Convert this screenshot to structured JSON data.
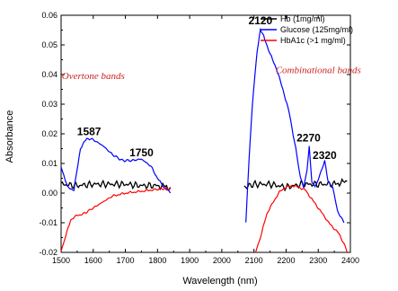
{
  "chart_data": {
    "type": "line",
    "xlabel": "Wavelength (nm)",
    "ylabel": "Absorbance",
    "xlim": [
      1500,
      2400
    ],
    "ylim": [
      -0.02,
      0.06
    ],
    "x_ticks": [
      1500,
      1600,
      1700,
      1800,
      1900,
      2000,
      2100,
      2200,
      2300,
      2400
    ],
    "y_ticks": [
      -0.02,
      -0.01,
      0.0,
      0.01,
      0.02,
      0.03,
      0.04,
      0.05,
      0.06
    ],
    "y_tick_labels": [
      "-0.02",
      "-0.01",
      "0.00",
      "0.01",
      "0.02",
      "0.03",
      "0.04",
      "0.05",
      "0.06"
    ],
    "legend_position": "top-right",
    "grid": false,
    "series": [
      {
        "name": "Hb (1mg/ml)",
        "color": "#000000",
        "segments": [
          [
            [
              1500,
              0.003
            ],
            [
              1550,
              0.0025
            ],
            [
              1600,
              0.003
            ],
            [
              1650,
              0.003
            ],
            [
              1700,
              0.003
            ],
            [
              1750,
              0.0025
            ],
            [
              1800,
              0.0025
            ],
            [
              1840,
              0.002
            ]
          ],
          [
            [
              2070,
              0.002
            ],
            [
              2100,
              0.003
            ],
            [
              2150,
              0.003
            ],
            [
              2200,
              0.002
            ],
            [
              2250,
              0.003
            ],
            [
              2300,
              0.003
            ],
            [
              2350,
              0.003
            ],
            [
              2390,
              0.004
            ]
          ]
        ]
      },
      {
        "name": "Glucose (125mg/ml)",
        "color": "#0000ff",
        "segments": [
          [
            [
              1500,
              0.009
            ],
            [
              1520,
              0.002
            ],
            [
              1540,
              0.001
            ],
            [
              1560,
              0.015
            ],
            [
              1580,
              0.0185
            ],
            [
              1600,
              0.018
            ],
            [
              1630,
              0.016
            ],
            [
              1660,
              0.013
            ],
            [
              1690,
              0.011
            ],
            [
              1720,
              0.011
            ],
            [
              1750,
              0.0115
            ],
            [
              1780,
              0.009
            ],
            [
              1800,
              0.005
            ],
            [
              1820,
              0.002
            ],
            [
              1840,
              0.0
            ]
          ],
          [
            [
              2075,
              -0.01
            ],
            [
              2085,
              0.012
            ],
            [
              2095,
              0.03
            ],
            [
              2110,
              0.048
            ],
            [
              2120,
              0.055
            ],
            [
              2130,
              0.053
            ],
            [
              2150,
              0.047
            ],
            [
              2170,
              0.042
            ],
            [
              2190,
              0.035
            ],
            [
              2210,
              0.027
            ],
            [
              2230,
              0.015
            ],
            [
              2245,
              0.005
            ],
            [
              2255,
              0.002
            ],
            [
              2265,
              0.008
            ],
            [
              2272,
              0.0155
            ],
            [
              2280,
              0.004
            ],
            [
              2290,
              0.002
            ],
            [
              2305,
              0.006
            ],
            [
              2320,
              0.011
            ],
            [
              2330,
              0.004
            ],
            [
              2345,
              0.002
            ],
            [
              2360,
              -0.006
            ],
            [
              2380,
              -0.01
            ]
          ]
        ]
      },
      {
        "name": "HbA1c (>1 mg/ml)",
        "color": "#ff0000",
        "segments": [
          [
            [
              1500,
              -0.02
            ],
            [
              1510,
              -0.016
            ],
            [
              1530,
              -0.009
            ],
            [
              1550,
              -0.0075
            ],
            [
              1570,
              -0.007
            ],
            [
              1600,
              -0.005
            ],
            [
              1630,
              -0.003
            ],
            [
              1660,
              -0.001
            ],
            [
              1700,
              0.0
            ],
            [
              1740,
              0.0005
            ],
            [
              1780,
              0.001
            ],
            [
              1810,
              0.0015
            ],
            [
              1840,
              0.0015
            ]
          ],
          [
            [
              2105,
              -0.02
            ],
            [
              2120,
              -0.015
            ],
            [
              2140,
              -0.007
            ],
            [
              2160,
              -0.003
            ],
            [
              2180,
              0.0005
            ],
            [
              2200,
              0.002
            ],
            [
              2220,
              0.0025
            ],
            [
              2240,
              0.002
            ],
            [
              2260,
              0.001
            ],
            [
              2280,
              -0.002
            ],
            [
              2300,
              -0.005
            ],
            [
              2320,
              -0.008
            ],
            [
              2340,
              -0.011
            ],
            [
              2360,
              -0.013
            ],
            [
              2380,
              -0.017
            ],
            [
              2390,
              -0.02
            ]
          ]
        ]
      }
    ],
    "annotations": [
      {
        "text": "1587",
        "x": 1587,
        "y": 0.0195,
        "kind": "peak"
      },
      {
        "text": "1750",
        "x": 1750,
        "y": 0.0125,
        "kind": "peak"
      },
      {
        "text": "2120",
        "x": 2120,
        "y": 0.057,
        "kind": "peak"
      },
      {
        "text": "2270",
        "x": 2270,
        "y": 0.0175,
        "kind": "peak"
      },
      {
        "text": "2320",
        "x": 2320,
        "y": 0.0115,
        "kind": "peak"
      },
      {
        "text": "Overtone bands",
        "x": 1600,
        "y": 0.0385,
        "kind": "band"
      },
      {
        "text": "Combinational  bands",
        "x": 2300,
        "y": 0.0405,
        "kind": "band"
      }
    ]
  }
}
